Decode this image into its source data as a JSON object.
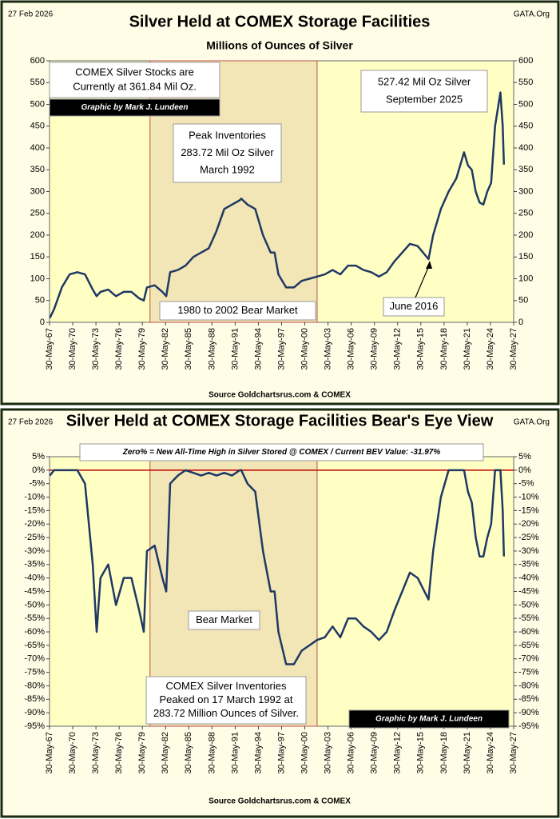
{
  "chart_data": [
    {
      "type": "line",
      "date_label": "27 Feb 2026",
      "site_label": "GATA.Org",
      "title": "Silver Held at COMEX Storage Facilities",
      "subtitle": "Millions of Ounces of Silver",
      "source": "Source Goldchartsrus.com  & COMEX",
      "xlim": [
        1967.41,
        2027.41
      ],
      "xticks": [
        {
          "value": 1967.41,
          "label": "30-May-67"
        },
        {
          "value": 1970.41,
          "label": "30-May-70"
        },
        {
          "value": 1973.41,
          "label": "30-May-73"
        },
        {
          "value": 1976.41,
          "label": "30-May-76"
        },
        {
          "value": 1979.41,
          "label": "30-May-79"
        },
        {
          "value": 1982.41,
          "label": "30-May-82"
        },
        {
          "value": 1985.41,
          "label": "30-May-85"
        },
        {
          "value": 1988.41,
          "label": "30-May-88"
        },
        {
          "value": 1991.41,
          "label": "30-May-91"
        },
        {
          "value": 1994.41,
          "label": "30-May-94"
        },
        {
          "value": 1997.41,
          "label": "30-May-97"
        },
        {
          "value": 2000.41,
          "label": "30-May-00"
        },
        {
          "value": 2003.41,
          "label": "30-May-03"
        },
        {
          "value": 2006.41,
          "label": "30-May-06"
        },
        {
          "value": 2009.41,
          "label": "30-May-09"
        },
        {
          "value": 2012.41,
          "label": "30-May-12"
        },
        {
          "value": 2015.41,
          "label": "30-May-15"
        },
        {
          "value": 2018.41,
          "label": "30-May-18"
        },
        {
          "value": 2021.41,
          "label": "30-May-21"
        },
        {
          "value": 2024.41,
          "label": "30-May-24"
        },
        {
          "value": 2027.41,
          "label": "30-May-27"
        }
      ],
      "ylim": [
        0,
        600
      ],
      "yticks": [
        0,
        50,
        100,
        150,
        200,
        250,
        300,
        350,
        400,
        450,
        500,
        550,
        600
      ],
      "y2lim": [
        0,
        600
      ],
      "y2ticks": [
        0,
        50,
        100,
        150,
        200,
        250,
        300,
        350,
        400,
        450,
        500,
        550,
        600
      ],
      "shade": [
        1980.4,
        2002.0
      ],
      "x": [
        1967.45,
        1968,
        1969,
        1970,
        1971,
        1972,
        1973,
        1973.5,
        1974,
        1975,
        1976,
        1977,
        1978,
        1979,
        1979.6,
        1980,
        1981,
        1982,
        1982.5,
        1983,
        1984,
        1985,
        1986,
        1987,
        1988,
        1989,
        1990,
        1991,
        1992,
        1992.2,
        1993,
        1994,
        1995,
        1996,
        1996.5,
        1997,
        1998,
        1999,
        2000,
        2001,
        2002,
        2003,
        2004,
        2005,
        2006,
        2007,
        2008,
        2009,
        2010,
        2011,
        2012,
        2013,
        2014,
        2015,
        2016.4,
        2017,
        2018,
        2019,
        2020,
        2021,
        2021.5,
        2022,
        2022.5,
        2023,
        2023.5,
        2024,
        2024.5,
        2025,
        2025.7,
        2026,
        2026.15
      ],
      "series": [
        {
          "name": "Silver Stocks",
          "color": "#1f3864",
          "values": [
            10,
            30,
            80,
            110,
            115,
            110,
            75,
            60,
            70,
            75,
            60,
            70,
            70,
            55,
            50,
            80,
            85,
            70,
            60,
            115,
            120,
            130,
            150,
            160,
            170,
            210,
            260,
            270,
            280,
            283.72,
            270,
            260,
            200,
            160,
            160,
            110,
            80,
            80,
            95,
            100,
            105,
            110,
            120,
            110,
            130,
            130,
            120,
            115,
            105,
            115,
            140,
            160,
            180,
            175,
            145,
            200,
            260,
            300,
            330,
            390,
            360,
            350,
            300,
            275,
            270,
            300,
            320,
            450,
            527.42,
            450,
            361.84
          ]
        }
      ],
      "annotations": [
        {
          "lines": [
            "COMEX Silver Stocks are",
            "Currently at 361.84 Mil Oz."
          ]
        },
        {
          "lines": [
            "Graphic by Mark J. Lundeen"
          ]
        },
        {
          "lines": [
            "Peak Inventories",
            "283.72 Mil Oz Silver",
            "March 1992"
          ]
        },
        {
          "lines": [
            "527.42 Mil Oz Silver",
            "September 2025"
          ]
        },
        {
          "lines": [
            "1980  to 2002 Bear Market"
          ]
        },
        {
          "lines": [
            "June 2016"
          ]
        }
      ]
    },
    {
      "type": "line",
      "date_label": "27 Feb 2026",
      "site_label": "GATA.Org",
      "title": "Silver Held at COMEX Storage Facilities  Bear's Eye View",
      "source": "Source Goldchartsrus.com & COMEX",
      "xlim": [
        1967.41,
        2027.41
      ],
      "xticks": [
        {
          "value": 1967.41,
          "label": "30-May-67"
        },
        {
          "value": 1970.41,
          "label": "30-May-70"
        },
        {
          "value": 1973.41,
          "label": "30-May-73"
        },
        {
          "value": 1976.41,
          "label": "30-May-76"
        },
        {
          "value": 1979.41,
          "label": "30-May-79"
        },
        {
          "value": 1982.41,
          "label": "30-May-82"
        },
        {
          "value": 1985.41,
          "label": "30-May-85"
        },
        {
          "value": 1988.41,
          "label": "30-May-88"
        },
        {
          "value": 1991.41,
          "label": "30-May-91"
        },
        {
          "value": 1994.41,
          "label": "30-May-94"
        },
        {
          "value": 1997.41,
          "label": "30-May-97"
        },
        {
          "value": 2000.41,
          "label": "30-May-00"
        },
        {
          "value": 2003.41,
          "label": "30-May-03"
        },
        {
          "value": 2006.41,
          "label": "30-May-06"
        },
        {
          "value": 2009.41,
          "label": "30-May-09"
        },
        {
          "value": 2012.41,
          "label": "30-May-12"
        },
        {
          "value": 2015.41,
          "label": "30-May-15"
        },
        {
          "value": 2018.41,
          "label": "30-May-18"
        },
        {
          "value": 2021.41,
          "label": "30-May-21"
        },
        {
          "value": 2024.41,
          "label": "30-May-24"
        },
        {
          "value": 2027.41,
          "label": "30-May-27"
        }
      ],
      "ylim": [
        -95,
        5
      ],
      "yticks": [
        {
          "value": 5,
          "label": "5%"
        },
        {
          "value": 0,
          "label": "0%"
        },
        {
          "value": -5,
          "label": "-5%"
        },
        {
          "value": -10,
          "label": "-10%"
        },
        {
          "value": -15,
          "label": "-15%"
        },
        {
          "value": -20,
          "label": "-20%"
        },
        {
          "value": -25,
          "label": "-25%"
        },
        {
          "value": -30,
          "label": "-30%"
        },
        {
          "value": -35,
          "label": "-35%"
        },
        {
          "value": -40,
          "label": "-40%"
        },
        {
          "value": -45,
          "label": "-45%"
        },
        {
          "value": -50,
          "label": "-50%"
        },
        {
          "value": -55,
          "label": "-55%"
        },
        {
          "value": -60,
          "label": "-60%"
        },
        {
          "value": -65,
          "label": "-65%"
        },
        {
          "value": -70,
          "label": "-70%"
        },
        {
          "value": -75,
          "label": "-75%"
        },
        {
          "value": -80,
          "label": "-80%"
        },
        {
          "value": -85,
          "label": "-85%"
        },
        {
          "value": -90,
          "label": "-90%"
        },
        {
          "value": -95,
          "label": "-95%"
        }
      ],
      "y2lim": [
        -95,
        5
      ],
      "y2ticks": [
        {
          "value": 5,
          "label": "5%"
        },
        {
          "value": 0,
          "label": "0%"
        },
        {
          "value": -5,
          "label": "-5%"
        },
        {
          "value": -10,
          "label": "-10%"
        },
        {
          "value": -15,
          "label": "-15%"
        },
        {
          "value": -20,
          "label": "-20%"
        },
        {
          "value": -25,
          "label": "-25%"
        },
        {
          "value": -30,
          "label": "-30%"
        },
        {
          "value": -35,
          "label": "-35%"
        },
        {
          "value": -40,
          "label": "-40%"
        },
        {
          "value": -45,
          "label": "-45%"
        },
        {
          "value": -50,
          "label": "-50%"
        },
        {
          "value": -55,
          "label": "-55%"
        },
        {
          "value": -60,
          "label": "-60%"
        },
        {
          "value": -65,
          "label": "-65%"
        },
        {
          "value": -70,
          "label": "-70%"
        },
        {
          "value": -75,
          "label": "-75%"
        },
        {
          "value": -80,
          "label": "-80%"
        },
        {
          "value": -85,
          "label": "-85%"
        },
        {
          "value": -90,
          "label": "-90%"
        },
        {
          "value": -95,
          "label": "-95%"
        }
      ],
      "reference_line": 0,
      "shade": [
        1980.4,
        2002.0
      ],
      "x": [
        1967.45,
        1968,
        1969,
        1970,
        1971,
        1972,
        1973,
        1973.5,
        1974,
        1975,
        1976,
        1977,
        1978,
        1979,
        1979.6,
        1980,
        1981,
        1982,
        1982.5,
        1983,
        1984,
        1985,
        1986,
        1987,
        1988,
        1989,
        1990,
        1991,
        1992,
        1992.2,
        1993,
        1994,
        1995,
        1996,
        1996.5,
        1997,
        1998,
        1999,
        2000,
        2001,
        2002,
        2003,
        2004,
        2005,
        2006,
        2007,
        2008,
        2009,
        2010,
        2011,
        2012,
        2013,
        2014,
        2015,
        2016.4,
        2017,
        2018,
        2019,
        2020,
        2021,
        2021.5,
        2022,
        2022.5,
        2023,
        2023.5,
        2024,
        2024.5,
        2025,
        2025.7,
        2026,
        2026.15
      ],
      "series": [
        {
          "name": "Bear's Eye View",
          "color": "#1f3864",
          "values": [
            -2,
            0,
            0,
            0,
            0,
            -5,
            -35,
            -60,
            -40,
            -35,
            -50,
            -40,
            -40,
            -52,
            -60,
            -30,
            -28,
            -40,
            -45,
            -5,
            -2,
            0,
            -1,
            -2,
            -1,
            -2,
            -1,
            -2,
            0,
            0,
            -5,
            -8,
            -30,
            -45,
            -45,
            -60,
            -72,
            -72,
            -67,
            -65,
            -63,
            -62,
            -58,
            -62,
            -55,
            -55,
            -58,
            -60,
            -63,
            -60,
            -52,
            -45,
            -38,
            -40,
            -48,
            -30,
            -10,
            0,
            0,
            0,
            -8,
            -12,
            -25,
            -32,
            -32,
            -25,
            -20,
            0,
            0,
            -15,
            -31.97
          ]
        }
      ],
      "annotations": [
        {
          "lines": [
            "Zero%  = New All-Time High in Silver Stored @ COMEX  / Current BEV Value: -31.97%"
          ]
        },
        {
          "lines": [
            "Bear Market"
          ]
        },
        {
          "lines": [
            "COMEX Silver Inventories",
            "Peaked on 17 March 1992 at",
            "283.72  Million Ounces of Silver."
          ]
        },
        {
          "lines": [
            "Graphic by Mark J. Lundeen"
          ]
        }
      ]
    }
  ]
}
